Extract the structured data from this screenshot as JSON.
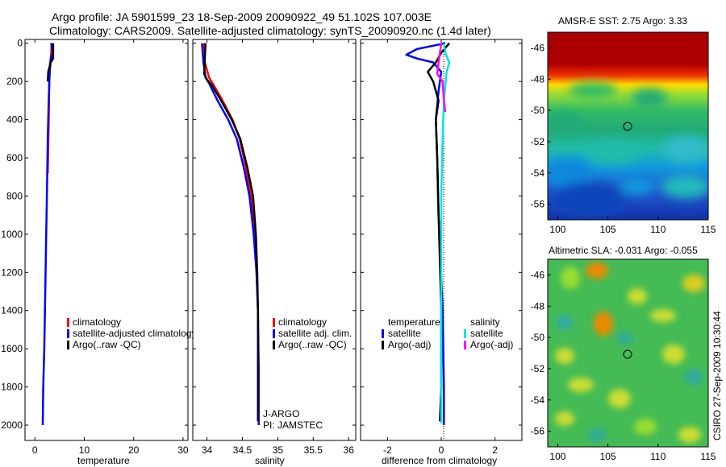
{
  "header": {
    "line1": "Argo profile: JA 5901599_23 18-Sep-2009 20090922_49 51.102S 107.003E",
    "line2": "Climatology: CARS2009. Satellite-adjusted climatology: synTS_20090920.nc (1.4d later)"
  },
  "side_label": "CSIRO 27-Sep-2009 10:30:44",
  "colors": {
    "clim": "#ff0000",
    "sat": "#0000ff",
    "argo": "#000000",
    "sal_sat": "#00e5e5",
    "sal_argo": "#ff00ff"
  },
  "chart_data": [
    {
      "type": "line",
      "id": "temperature",
      "xlabel": "temperature",
      "xlim": [
        -2,
        31
      ],
      "ylim": [
        2080,
        -20
      ],
      "xticks": [
        0,
        10,
        20,
        30
      ],
      "xtick_labels": [
        "0",
        "10",
        "20",
        "30"
      ],
      "yticks": [
        0,
        200,
        400,
        600,
        800,
        1000,
        1200,
        1400,
        1600,
        1800,
        2000
      ],
      "ytick_labels": [
        "0",
        "200",
        "400",
        "600",
        "800",
        "1000",
        "1200",
        "1400",
        "1600",
        "1800",
        "2000"
      ],
      "series": [
        {
          "name": "climatology",
          "color": "#ff0000",
          "x": [
            3.4,
            3.3,
            3.1,
            2.9,
            2.8,
            2.7,
            2.6
          ],
          "y": [
            0,
            60,
            100,
            200,
            400,
            550,
            680
          ]
        },
        {
          "name": "satellite-adjusted climatology",
          "color": "#0000ff",
          "x": [
            3.3,
            3.6,
            3.3,
            3.0,
            2.8,
            2.6,
            2.5,
            2.3,
            2.1,
            1.9,
            1.7,
            1.6
          ],
          "y": [
            0,
            50,
            70,
            150,
            300,
            500,
            700,
            1000,
            1300,
            1600,
            1800,
            2000
          ]
        },
        {
          "name": "Argo(..raw -QC)",
          "color": "#000000",
          "x": [
            3.7,
            3.7,
            3.2,
            2.7,
            2.6
          ],
          "y": [
            0,
            80,
            100,
            150,
            200
          ]
        }
      ],
      "legend": {
        "position": "lower-center",
        "labels": [
          "climatology",
          "satellite-adjusted climatology",
          "Argo(..raw -QC)"
        ]
      }
    },
    {
      "type": "line",
      "id": "salinity",
      "xlabel": "salinity",
      "xlim": [
        33.8,
        36.1
      ],
      "ylim": [
        2080,
        -20
      ],
      "xticks": [
        34,
        34.5,
        35,
        35.5,
        36
      ],
      "xtick_labels": [
        "34",
        "34.5",
        "35",
        "35.5",
        "36"
      ],
      "series": [
        {
          "name": "climatology",
          "color": "#ff0000",
          "x": [
            33.95,
            33.97,
            34.03,
            34.08,
            34.22,
            34.36,
            34.46,
            34.55,
            34.62,
            34.67,
            34.7,
            34.72
          ],
          "y": [
            0,
            100,
            180,
            210,
            300,
            400,
            500,
            650,
            800,
            1000,
            1200,
            1400
          ]
        },
        {
          "name": "satellite adj. clim.",
          "color": "#0000ff",
          "x": [
            33.93,
            33.95,
            33.98,
            34.03,
            34.15,
            34.3,
            34.42,
            34.52,
            34.6,
            34.66,
            34.7,
            34.72,
            34.73,
            34.73
          ],
          "y": [
            0,
            100,
            180,
            210,
            300,
            400,
            500,
            650,
            800,
            1000,
            1200,
            1400,
            1700,
            2000
          ]
        },
        {
          "name": "Argo(..raw -QC)",
          "color": "#000000",
          "x": [
            33.98,
            33.97,
            33.96,
            34.0,
            34.07,
            34.2,
            34.35,
            34.47,
            34.57,
            34.65,
            34.69,
            34.71,
            34.72,
            34.72
          ],
          "y": [
            0,
            80,
            160,
            190,
            220,
            300,
            400,
            500,
            650,
            800,
            1000,
            1200,
            1400,
            1980
          ]
        }
      ],
      "legend": {
        "position": "lower-center",
        "labels": [
          "climatology",
          "satellite adj. clim.",
          "Argo(..raw -QC)"
        ]
      },
      "annotations": [
        "J-ARGO",
        "PI: JAMSTEC"
      ]
    },
    {
      "type": "line",
      "id": "difference",
      "xlabel": "difference from climatology",
      "xlim": [
        -3,
        3
      ],
      "ylim": [
        2080,
        -20
      ],
      "xticks": [
        -2,
        0,
        2
      ],
      "xtick_labels": [
        "-2",
        "0",
        "2"
      ],
      "series": [
        {
          "name": "temperature satellite",
          "color": "#0000ff",
          "x": [
            0.15,
            -0.9,
            -1.3,
            -0.9,
            -0.3,
            0.0,
            -0.1,
            -0.2,
            -0.15,
            -0.1,
            0.05,
            0.1,
            0.1
          ],
          "y": [
            0,
            30,
            60,
            80,
            100,
            150,
            250,
            400,
            600,
            900,
            1400,
            1800,
            2000
          ]
        },
        {
          "name": "temperature Argo(-adj)",
          "color": "#000000",
          "x": [
            0.3,
            0.0,
            -0.2,
            -0.5,
            -0.3,
            -0.1,
            -0.2,
            -0.15,
            -0.1,
            0.0,
            0.0,
            -0.05
          ],
          "y": [
            0,
            50,
            100,
            150,
            200,
            300,
            400,
            600,
            900,
            1400,
            1800,
            1980
          ]
        },
        {
          "name": "salinity satellite",
          "color": "#00e5e5",
          "x": [
            0.1,
            0.15,
            0.3,
            0.2,
            0.1,
            0.05,
            0.0,
            0.0,
            0.0,
            0.0
          ],
          "y": [
            0,
            50,
            100,
            150,
            300,
            500,
            800,
            1200,
            1600,
            1990
          ]
        },
        {
          "name": "salinity Argo(-adj)",
          "color": "#ff00ff",
          "x": [
            0.0,
            -0.1,
            -0.15,
            0.05,
            0.1,
            0.15
          ],
          "y": [
            0,
            100,
            160,
            200,
            300,
            360
          ]
        }
      ],
      "legend": {
        "position": "lower-center",
        "headers": [
          "temperature",
          "salinity"
        ],
        "labels": [
          "satellite",
          "Argo(-adj)",
          "satellite",
          "Argo(-adj)"
        ]
      }
    },
    {
      "type": "heatmap",
      "id": "sst_map",
      "title": "AMSR-E SST: 2.75  Argo: 3.33",
      "xlim": [
        99,
        115
      ],
      "ylim": [
        -57,
        -45
      ],
      "xticks": [
        100,
        105,
        110,
        115
      ],
      "xtick_labels": [
        "100",
        "105",
        "110",
        "115"
      ],
      "yticks": [
        -46,
        -48,
        -50,
        -52,
        -54,
        -56
      ],
      "ytick_labels": [
        "-46",
        "-48",
        "-50",
        "-52",
        "-54",
        "-56"
      ],
      "marker": {
        "lon": 107.0,
        "lat": -51.1
      }
    },
    {
      "type": "heatmap",
      "id": "sla_map",
      "title": "Altimetric SLA: -0.031  Argo: -0.055",
      "xlim": [
        99,
        115
      ],
      "ylim": [
        -57,
        -45
      ],
      "xticks": [
        100,
        105,
        110,
        115
      ],
      "xtick_labels": [
        "100",
        "105",
        "110",
        "115"
      ],
      "yticks": [
        -46,
        -48,
        -50,
        -52,
        -54,
        -56
      ],
      "ytick_labels": [
        "-46",
        "-48",
        "-50",
        "-52",
        "-54",
        "-56"
      ],
      "marker": {
        "lon": 107.0,
        "lat": -51.1
      }
    }
  ]
}
